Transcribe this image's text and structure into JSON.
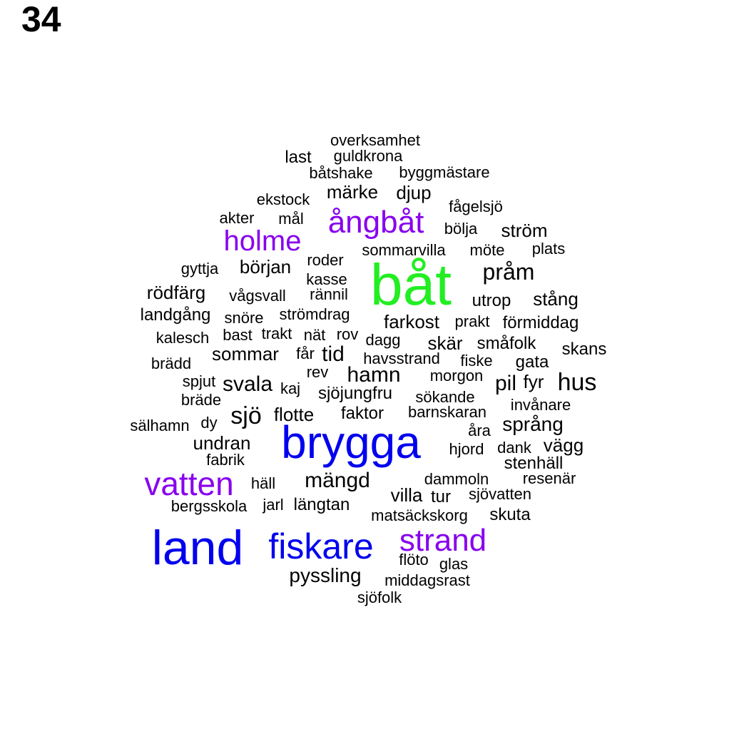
{
  "page_number": "34",
  "colors": {
    "top": "#22ee22",
    "large": "#0000ee",
    "medium": "#8800ee",
    "small": "#000000"
  },
  "words": [
    {
      "text": "båt",
      "tier": "top"
    },
    {
      "text": "brygga",
      "tier": "large"
    },
    {
      "text": "land",
      "tier": "large"
    },
    {
      "text": "fiskare",
      "tier": "large"
    },
    {
      "text": "vatten",
      "tier": "medium"
    },
    {
      "text": "strand",
      "tier": "medium"
    },
    {
      "text": "ångbåt",
      "tier": "medium"
    },
    {
      "text": "holme",
      "tier": "medium"
    },
    {
      "text": "overksamhet",
      "tier": "small"
    },
    {
      "text": "last",
      "tier": "small"
    },
    {
      "text": "guldkrona",
      "tier": "small"
    },
    {
      "text": "båtshake",
      "tier": "small"
    },
    {
      "text": "byggmästare",
      "tier": "small"
    },
    {
      "text": "märke",
      "tier": "small"
    },
    {
      "text": "djup",
      "tier": "small"
    },
    {
      "text": "ekstock",
      "tier": "small"
    },
    {
      "text": "fågelsjö",
      "tier": "small"
    },
    {
      "text": "akter",
      "tier": "small"
    },
    {
      "text": "mål",
      "tier": "small"
    },
    {
      "text": "bölja",
      "tier": "small"
    },
    {
      "text": "ström",
      "tier": "small"
    },
    {
      "text": "sommarvilla",
      "tier": "small"
    },
    {
      "text": "möte",
      "tier": "small"
    },
    {
      "text": "plats",
      "tier": "small"
    },
    {
      "text": "roder",
      "tier": "small"
    },
    {
      "text": "gyttja",
      "tier": "small"
    },
    {
      "text": "början",
      "tier": "small"
    },
    {
      "text": "pråm",
      "tier": "small"
    },
    {
      "text": "kasse",
      "tier": "small"
    },
    {
      "text": "rödfärg",
      "tier": "small"
    },
    {
      "text": "vågsvall",
      "tier": "small"
    },
    {
      "text": "rännil",
      "tier": "small"
    },
    {
      "text": "utrop",
      "tier": "small"
    },
    {
      "text": "stång",
      "tier": "small"
    },
    {
      "text": "landgång",
      "tier": "small"
    },
    {
      "text": "snöre",
      "tier": "small"
    },
    {
      "text": "strömdrag",
      "tier": "small"
    },
    {
      "text": "farkost",
      "tier": "small"
    },
    {
      "text": "prakt",
      "tier": "small"
    },
    {
      "text": "förmiddag",
      "tier": "small"
    },
    {
      "text": "kalesch",
      "tier": "small"
    },
    {
      "text": "bast",
      "tier": "small"
    },
    {
      "text": "trakt",
      "tier": "small"
    },
    {
      "text": "nät",
      "tier": "small"
    },
    {
      "text": "rov",
      "tier": "small"
    },
    {
      "text": "dagg",
      "tier": "small"
    },
    {
      "text": "skär",
      "tier": "small"
    },
    {
      "text": "småfolk",
      "tier": "small"
    },
    {
      "text": "skans",
      "tier": "small"
    },
    {
      "text": "sommar",
      "tier": "small"
    },
    {
      "text": "får",
      "tier": "small"
    },
    {
      "text": "tid",
      "tier": "small"
    },
    {
      "text": "havsstrand",
      "tier": "small"
    },
    {
      "text": "fiske",
      "tier": "small"
    },
    {
      "text": "gata",
      "tier": "small"
    },
    {
      "text": "brädd",
      "tier": "small"
    },
    {
      "text": "rev",
      "tier": "small"
    },
    {
      "text": "hamn",
      "tier": "small"
    },
    {
      "text": "morgon",
      "tier": "small"
    },
    {
      "text": "pil",
      "tier": "small"
    },
    {
      "text": "fyr",
      "tier": "small"
    },
    {
      "text": "hus",
      "tier": "small"
    },
    {
      "text": "spjut",
      "tier": "small"
    },
    {
      "text": "svala",
      "tier": "small"
    },
    {
      "text": "kaj",
      "tier": "small"
    },
    {
      "text": "sjöjungfru",
      "tier": "small"
    },
    {
      "text": "sökande",
      "tier": "small"
    },
    {
      "text": "bräde",
      "tier": "small"
    },
    {
      "text": "invånare",
      "tier": "small"
    },
    {
      "text": "sjö",
      "tier": "small"
    },
    {
      "text": "flotte",
      "tier": "small"
    },
    {
      "text": "faktor",
      "tier": "small"
    },
    {
      "text": "barnskaran",
      "tier": "small"
    },
    {
      "text": "sälhamn",
      "tier": "small"
    },
    {
      "text": "dy",
      "tier": "small"
    },
    {
      "text": "språng",
      "tier": "small"
    },
    {
      "text": "åra",
      "tier": "small"
    },
    {
      "text": "undran",
      "tier": "small"
    },
    {
      "text": "hjord",
      "tier": "small"
    },
    {
      "text": "dank",
      "tier": "small"
    },
    {
      "text": "vägg",
      "tier": "small"
    },
    {
      "text": "fabrik",
      "tier": "small"
    },
    {
      "text": "stenhäll",
      "tier": "small"
    },
    {
      "text": "häll",
      "tier": "small"
    },
    {
      "text": "mängd",
      "tier": "small"
    },
    {
      "text": "dammoln",
      "tier": "small"
    },
    {
      "text": "resenär",
      "tier": "small"
    },
    {
      "text": "villa",
      "tier": "small"
    },
    {
      "text": "tur",
      "tier": "small"
    },
    {
      "text": "sjövatten",
      "tier": "small"
    },
    {
      "text": "bergsskola",
      "tier": "small"
    },
    {
      "text": "jarl",
      "tier": "small"
    },
    {
      "text": "längtan",
      "tier": "small"
    },
    {
      "text": "matsäckskorg",
      "tier": "small"
    },
    {
      "text": "skuta",
      "tier": "small"
    },
    {
      "text": "flöto",
      "tier": "small"
    },
    {
      "text": "glas",
      "tier": "small"
    },
    {
      "text": "pyssling",
      "tier": "small"
    },
    {
      "text": "middagsrast",
      "tier": "small"
    },
    {
      "text": "sjöfolk",
      "tier": "small"
    }
  ]
}
